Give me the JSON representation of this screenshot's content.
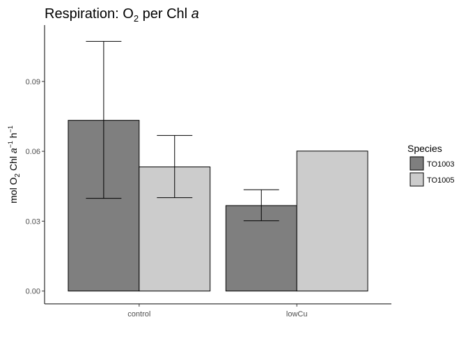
{
  "chart_data": {
    "type": "bar",
    "title": {
      "prefix": "Respiration: O",
      "subscript": "2",
      "middle": " per Chl ",
      "italic": "a"
    },
    "ylabel": {
      "part1": "mol  O",
      "sub": "2",
      "part2": "  Chl ",
      "italic": "a",
      "sup1": "−1",
      "h": " h",
      "sup2": "−1"
    },
    "xlabel": "",
    "categories": [
      "control",
      "lowCu"
    ],
    "series": [
      {
        "name": "TO1003",
        "color": "#7f7f7f",
        "values": [
          0.0733,
          0.0367
        ],
        "error_low": [
          0.0398,
          0.0302
        ],
        "error_high": [
          0.1072,
          0.0435
        ]
      },
      {
        "name": "TO1005",
        "color": "#cccccc",
        "values": [
          0.0533,
          0.0601
        ],
        "error_low": [
          0.0401,
          null
        ],
        "error_high": [
          0.0668,
          null
        ]
      }
    ],
    "ylim": [
      -0.0055,
      0.1142
    ],
    "yticks": [
      0.0,
      0.03,
      0.06,
      0.09
    ],
    "ytick_labels": [
      "0.00",
      "0.03",
      "0.06",
      "0.09"
    ],
    "legend": {
      "title": "Species",
      "placement": "right"
    },
    "grid": false
  }
}
